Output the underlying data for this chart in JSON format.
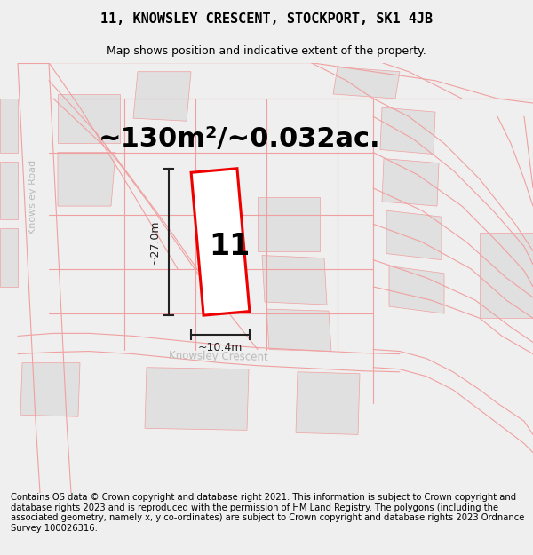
{
  "title_line1": "11, KNOWSLEY CRESCENT, STOCKPORT, SK1 4JB",
  "title_line2": "Map shows position and indicative extent of the property.",
  "footer_text": "Contains OS data © Crown copyright and database right 2021. This information is subject to Crown copyright and database rights 2023 and is reproduced with the permission of HM Land Registry. The polygons (including the associated geometry, namely x, y co-ordinates) are subject to Crown copyright and database rights 2023 Ordnance Survey 100026316.",
  "area_label": "~130m²/~0.032ac.",
  "width_label": "~10.4m",
  "height_label": "~27.0m",
  "plot_number": "11",
  "bg_color": "#efefef",
  "map_bg": "#ffffff",
  "road_color": "#f0a0a0",
  "building_color": "#e0e0e0",
  "plot_color": "#ee0000",
  "road_label_color": "#bbbbbb",
  "dim_color": "#222222",
  "title_fontsize": 11,
  "subtitle_fontsize": 9,
  "footer_fontsize": 7.2,
  "area_fontsize": 22,
  "dim_fontsize": 9,
  "plot_number_fontsize": 24,
  "road1_label": "Knowsley Road",
  "road2_label": "Knowsley Crescent"
}
